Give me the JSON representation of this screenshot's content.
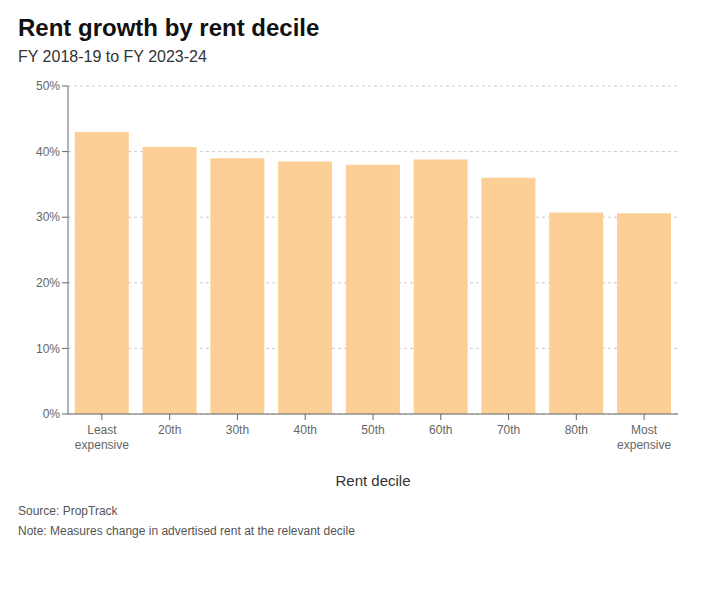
{
  "chart_data": {
    "type": "bar",
    "title": "Rent growth by rent decile",
    "subtitle": "FY 2018-19 to FY 2023-24",
    "categories": [
      "Least\nexpensive",
      "20th",
      "30th",
      "40th",
      "50th",
      "60th",
      "70th",
      "80th",
      "Most\nexpensive"
    ],
    "values": [
      43.0,
      40.7,
      39.0,
      38.5,
      38.0,
      38.8,
      36.0,
      30.7,
      30.6
    ],
    "color": "#FCCF96",
    "xlabel": "Rent decile",
    "ylim": [
      0,
      50
    ],
    "yticks": [
      {
        "value": 0,
        "label": "0%"
      },
      {
        "value": 10,
        "label": "10%"
      },
      {
        "value": 20,
        "label": "20%"
      },
      {
        "value": 30,
        "label": "30%"
      },
      {
        "value": 40,
        "label": "40%"
      },
      {
        "value": 50,
        "label": "50%"
      }
    ],
    "grid": true,
    "annotations": [
      "Source: PropTrack",
      "Note: Measures change in advertised rent at the relevant decile"
    ]
  }
}
